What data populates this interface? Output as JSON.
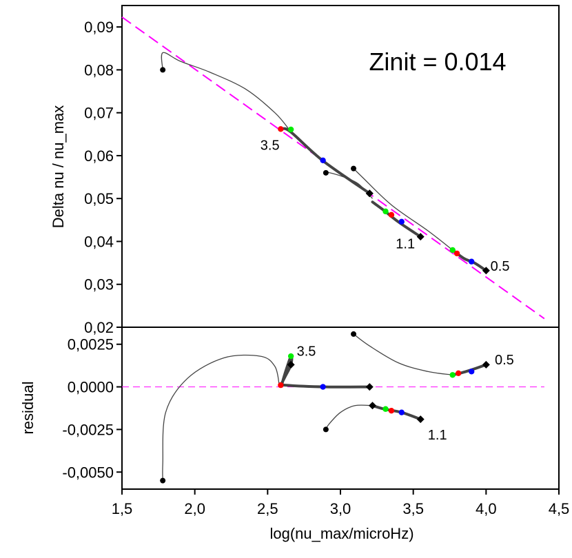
{
  "chart_data": [
    {
      "panel": "top",
      "type": "line",
      "title": "",
      "xlabel": "log(nu_max/microHz)",
      "ylabel": "Delta nu / nu_max",
      "xlim": [
        1.5,
        4.5
      ],
      "ylim": [
        0.02,
        0.095
      ],
      "yticks": [
        0.02,
        0.03,
        0.04,
        0.05,
        0.06,
        0.07,
        0.08,
        0.09
      ],
      "ytick_labels": [
        "0,02",
        "0,03",
        "0,04",
        "0,05",
        "0,06",
        "0,07",
        "0,08",
        "0,09"
      ],
      "reference_line": {
        "name": "fit",
        "style": "dashed",
        "color": "#ff00ff",
        "x": [
          1.5,
          4.4
        ],
        "y": [
          0.0923,
          0.022
        ]
      },
      "annotation_main": "Zinit = 0.014",
      "series": [
        {
          "name": "3.5",
          "thin_x": [
            1.78,
            1.78,
            1.9,
            2.1,
            2.35,
            2.55,
            2.65
          ],
          "thin_y": [
            0.08,
            0.084,
            0.082,
            0.0795,
            0.0755,
            0.07,
            0.066
          ],
          "thick_x": [
            2.6,
            2.66,
            2.88,
            3.2
          ],
          "thick_y": [
            0.0663,
            0.0655,
            0.0588,
            0.0512
          ],
          "start": [
            1.78,
            0.08
          ],
          "end": [
            3.2,
            0.0512
          ],
          "markers": [
            {
              "color": "#ff0000",
              "x": 2.59,
              "y": 0.0662
            },
            {
              "color": "#00ee00",
              "x": 2.66,
              "y": 0.0661
            },
            {
              "color": "#0000ff",
              "x": 2.88,
              "y": 0.0589
            }
          ],
          "label": "3.5",
          "label_pos": [
            2.45,
            0.0625
          ]
        },
        {
          "name": "1.1",
          "thin_x": [
            2.9,
            2.9,
            3.0,
            3.12,
            3.22
          ],
          "thin_y": [
            0.056,
            0.0562,
            0.0553,
            0.0535,
            0.05
          ],
          "thick_x": [
            3.22,
            3.3,
            3.4,
            3.55
          ],
          "thick_y": [
            0.0492,
            0.0472,
            0.0445,
            0.0411
          ],
          "start": [
            2.9,
            0.056
          ],
          "end": [
            3.55,
            0.0411
          ],
          "markers": [
            {
              "color": "#00ee00",
              "x": 3.31,
              "y": 0.047
            },
            {
              "color": "#ff0000",
              "x": 3.35,
              "y": 0.0462
            },
            {
              "color": "#0000ff",
              "x": 3.42,
              "y": 0.0446
            }
          ],
          "label": "1.1",
          "label_pos": [
            3.38,
            0.0395
          ]
        },
        {
          "name": "0.5",
          "thin_x": [
            3.09,
            3.15,
            3.35,
            3.6,
            3.77
          ],
          "thin_y": [
            0.057,
            0.055,
            0.0485,
            0.0425,
            0.038
          ],
          "thick_x": [
            3.77,
            3.85,
            3.92,
            4.0
          ],
          "thick_y": [
            0.038,
            0.036,
            0.035,
            0.0332
          ],
          "start": [
            3.09,
            0.057
          ],
          "end": [
            4.0,
            0.0332
          ],
          "markers": [
            {
              "color": "#00ee00",
              "x": 3.77,
              "y": 0.038
            },
            {
              "color": "#ff0000",
              "x": 3.8,
              "y": 0.0372
            },
            {
              "color": "#0000ff",
              "x": 3.9,
              "y": 0.0353
            }
          ],
          "label": "0.5",
          "label_pos": [
            4.03,
            0.0343
          ]
        }
      ]
    },
    {
      "panel": "bottom",
      "type": "line",
      "title": "",
      "xlabel": "log(nu_max/microHz)",
      "ylabel": "residual",
      "xlim": [
        1.5,
        4.5
      ],
      "ylim": [
        -0.006,
        0.0035
      ],
      "yticks": [
        -0.005,
        -0.0025,
        0.0,
        0.0025
      ],
      "ytick_labels": [
        "-0,0050",
        "-0,0025",
        "0,0000",
        "0,0025"
      ],
      "xticks": [
        1.5,
        2.0,
        2.5,
        3.0,
        3.5,
        4.0,
        4.5
      ],
      "xtick_labels": [
        "1,5",
        "2,0",
        "2,5",
        "3,0",
        "3,5",
        "4,0",
        "4,5"
      ],
      "reference_line": {
        "name": "zero",
        "style": "dashed",
        "color": "#ff00ff",
        "x": [
          1.5,
          4.4
        ],
        "y": [
          0.0,
          0.0
        ]
      },
      "series": [
        {
          "name": "3.5",
          "thin_x": [
            1.78,
            1.78,
            1.8,
            1.95,
            2.2,
            2.45,
            2.55,
            2.58
          ],
          "thin_y": [
            -0.0055,
            -0.0045,
            -0.0015,
            0.0005,
            0.0017,
            0.0018,
            0.0012,
            0.0001
          ],
          "thick_x": [
            2.59,
            2.62,
            2.66,
            2.66,
            2.6,
            2.62,
            2.9,
            3.2
          ],
          "thick_y": [
            0.0001,
            0.0006,
            0.0013,
            0.0018,
            0.0002,
            0.0001,
            0.0,
            0.0
          ],
          "start": [
            1.78,
            -0.0055
          ],
          "end": [
            3.2,
            0.0
          ],
          "markers": [
            {
              "color": "#ff0000",
              "x": 2.59,
              "y": 0.0001
            },
            {
              "color": "#00ee00",
              "x": 2.66,
              "y": 0.0018
            },
            {
              "color": "#0000ff",
              "x": 2.88,
              "y": 0.0
            }
          ],
          "label": "3.5",
          "label_pos": [
            2.7,
            0.0021
          ]
        },
        {
          "name": "1.1",
          "thin_x": [
            2.9,
            2.92,
            3.0,
            3.1,
            3.22
          ],
          "thin_y": [
            -0.0025,
            -0.0022,
            -0.0015,
            -0.0011,
            -0.0011
          ],
          "thick_x": [
            3.22,
            3.3,
            3.42,
            3.55
          ],
          "thick_y": [
            -0.0011,
            -0.0013,
            -0.0015,
            -0.0019
          ],
          "start": [
            2.9,
            -0.0025
          ],
          "end": [
            3.55,
            -0.0019
          ],
          "markers": [
            {
              "color": "#00ee00",
              "x": 3.31,
              "y": -0.0013
            },
            {
              "color": "#ff0000",
              "x": 3.35,
              "y": -0.0014
            },
            {
              "color": "#0000ff",
              "x": 3.42,
              "y": -0.0015
            }
          ],
          "label": "1.1",
          "label_pos": [
            3.6,
            -0.0028
          ]
        },
        {
          "name": "0.5",
          "thin_x": [
            3.09,
            3.2,
            3.4,
            3.6,
            3.77
          ],
          "thin_y": [
            0.0031,
            0.0024,
            0.0014,
            0.0009,
            0.0007
          ],
          "thick_x": [
            3.77,
            3.82,
            3.9,
            4.0
          ],
          "thick_y": [
            0.0007,
            0.0008,
            0.001,
            0.0013
          ],
          "start": [
            3.09,
            0.0031
          ],
          "end": [
            4.0,
            0.0013
          ],
          "markers": [
            {
              "color": "#00ee00",
              "x": 3.77,
              "y": 0.0007
            },
            {
              "color": "#ff0000",
              "x": 3.81,
              "y": 0.0008
            },
            {
              "color": "#0000ff",
              "x": 3.9,
              "y": 0.0009
            }
          ],
          "label": "0.5",
          "label_pos": [
            4.06,
            0.0016
          ]
        }
      ]
    }
  ]
}
